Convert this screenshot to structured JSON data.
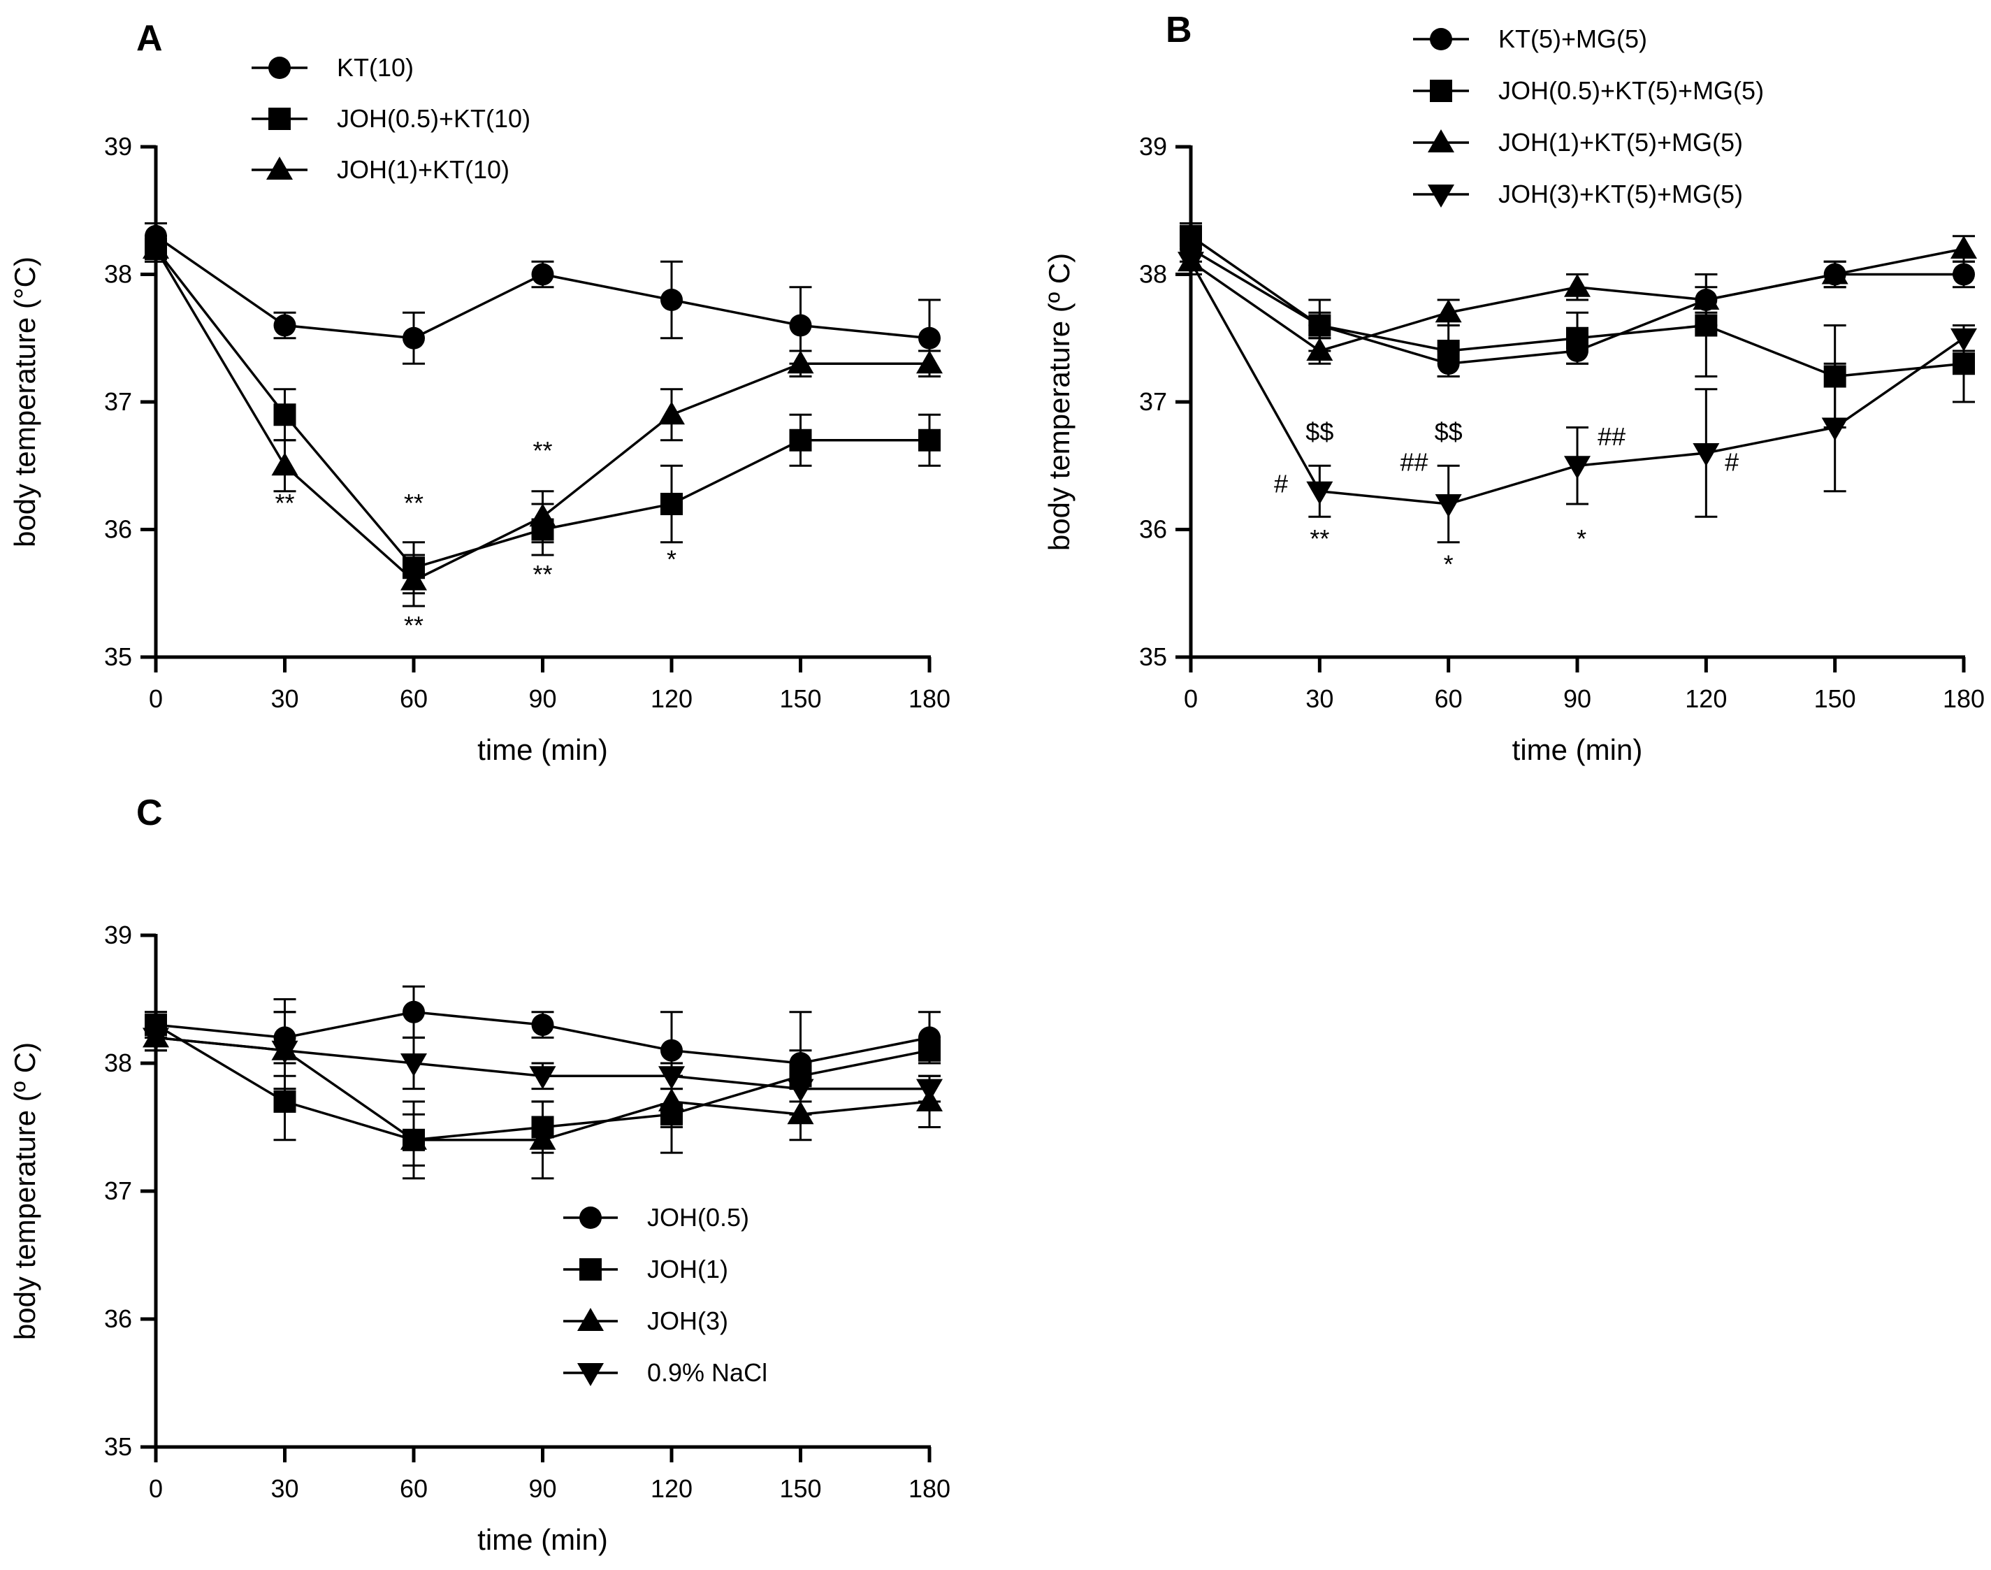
{
  "chart_data": [
    {
      "panel": "A",
      "type": "line",
      "xlabel": "time (min)",
      "ylabel": "body temperature (°C)",
      "x": [
        0,
        30,
        60,
        90,
        120,
        150,
        180
      ],
      "xticks": [
        "0",
        "30",
        "60",
        "90",
        "120",
        "150",
        "180"
      ],
      "yticks": [
        "35",
        "36",
        "37",
        "38",
        "39"
      ],
      "xlim": [
        0,
        180
      ],
      "ylim": [
        35,
        39
      ],
      "legend_position": "top",
      "series": [
        {
          "name": "KT(10)",
          "marker": "circle",
          "values": [
            38.3,
            37.6,
            37.5,
            38.0,
            37.8,
            37.6,
            37.5
          ],
          "errors": [
            0.1,
            0.1,
            0.2,
            0.1,
            0.3,
            0.3,
            0.3
          ]
        },
        {
          "name": "JOH(0.5)+KT(10)",
          "marker": "square",
          "values": [
            38.2,
            36.9,
            35.7,
            36.0,
            36.2,
            36.7,
            36.7
          ],
          "errors": [
            0.1,
            0.2,
            0.2,
            0.2,
            0.3,
            0.2,
            0.2
          ]
        },
        {
          "name": "JOH(1)+KT(10)",
          "marker": "triangle-up",
          "values": [
            38.2,
            36.5,
            35.6,
            36.1,
            36.9,
            37.3,
            37.3
          ],
          "errors": [
            0.1,
            0.2,
            0.2,
            0.2,
            0.2,
            0.1,
            0.1
          ]
        }
      ],
      "annotations": [
        {
          "x": 30,
          "y": 36.14,
          "text": "**"
        },
        {
          "x": 60,
          "y": 36.14,
          "text": "**"
        },
        {
          "x": 60,
          "y": 35.18,
          "text": "**"
        },
        {
          "x": 90,
          "y": 36.55,
          "text": "**"
        },
        {
          "x": 90,
          "y": 35.58,
          "text": "**"
        },
        {
          "x": 120,
          "y": 35.7,
          "text": "*"
        }
      ]
    },
    {
      "panel": "B",
      "type": "line",
      "xlabel": "time (min)",
      "ylabel": "body temperature (º C)",
      "x": [
        0,
        30,
        60,
        90,
        120,
        150,
        180
      ],
      "xticks": [
        "0",
        "30",
        "60",
        "90",
        "120",
        "150",
        "180"
      ],
      "yticks": [
        "35",
        "36",
        "37",
        "38",
        "39"
      ],
      "xlim": [
        0,
        180
      ],
      "ylim": [
        35,
        39
      ],
      "legend_position": "top",
      "series": [
        {
          "name": "KT(5)+MG(5)",
          "marker": "circle",
          "values": [
            38.2,
            37.6,
            37.3,
            37.4,
            37.8,
            38.0,
            38.0
          ],
          "errors": [
            0.1,
            0.1,
            0.1,
            0.1,
            0.1,
            0.1,
            0.1
          ]
        },
        {
          "name": "JOH(0.5)+KT(5)+MG(5)",
          "marker": "square",
          "values": [
            38.3,
            37.6,
            37.4,
            37.5,
            37.6,
            37.2,
            37.3
          ],
          "errors": [
            0.1,
            0.2,
            0.2,
            0.2,
            0.4,
            0.4,
            0.3
          ]
        },
        {
          "name": "JOH(1)+KT(5)+MG(5)",
          "marker": "triangle-up",
          "values": [
            38.1,
            37.4,
            37.7,
            37.9,
            37.8,
            38.0,
            38.2
          ],
          "errors": [
            0.1,
            0.1,
            0.1,
            0.1,
            0.2,
            0.1,
            0.1
          ]
        },
        {
          "name": "JOH(3)+KT(5)+MG(5)",
          "marker": "triangle-down",
          "values": [
            38.1,
            36.3,
            36.2,
            36.5,
            36.6,
            36.8,
            37.5
          ],
          "errors": [
            0.1,
            0.2,
            0.3,
            0.3,
            0.5,
            0.5,
            0.1
          ]
        }
      ],
      "annotations": [
        {
          "x": 30,
          "y": 36.7,
          "text": "$$"
        },
        {
          "x": 60,
          "y": 36.7,
          "text": "$$"
        },
        {
          "x": 21,
          "y": 36.29,
          "text": "#"
        },
        {
          "x": 52,
          "y": 36.46,
          "text": "##"
        },
        {
          "x": 98,
          "y": 36.66,
          "text": "##"
        },
        {
          "x": 126,
          "y": 36.46,
          "text": "#"
        },
        {
          "x": 30,
          "y": 35.86,
          "text": "**"
        },
        {
          "x": 60,
          "y": 35.66,
          "text": "*"
        },
        {
          "x": 91,
          "y": 35.86,
          "text": "*"
        }
      ]
    },
    {
      "panel": "C",
      "type": "line",
      "xlabel": "time (min)",
      "ylabel": "body temperature (º C)",
      "x": [
        0,
        30,
        60,
        90,
        120,
        150,
        180
      ],
      "xticks": [
        "0",
        "30",
        "60",
        "90",
        "120",
        "150",
        "180"
      ],
      "yticks": [
        "35",
        "36",
        "37",
        "38",
        "39"
      ],
      "xlim": [
        0,
        180
      ],
      "ylim": [
        35,
        39
      ],
      "legend_position": "lower-right",
      "series": [
        {
          "name": "JOH(0.5)",
          "marker": "circle",
          "values": [
            38.3,
            38.2,
            38.4,
            38.3,
            38.1,
            38.0,
            38.2
          ],
          "errors": [
            0.1,
            0.3,
            0.2,
            0.1,
            0.3,
            0.4,
            0.2
          ]
        },
        {
          "name": "JOH(1)",
          "marker": "square",
          "values": [
            38.3,
            37.7,
            37.4,
            37.5,
            37.6,
            37.9,
            38.1
          ],
          "errors": [
            0.1,
            0.3,
            0.3,
            0.2,
            0.3,
            0.2,
            0.1
          ]
        },
        {
          "name": "JOH(3)",
          "marker": "triangle-up",
          "values": [
            38.2,
            38.1,
            37.4,
            37.4,
            37.7,
            37.6,
            37.7
          ],
          "errors": [
            0.1,
            0.3,
            0.2,
            0.3,
            0.2,
            0.2,
            0.2
          ]
        },
        {
          "name": "0.9% NaCl",
          "marker": "triangle-down",
          "values": [
            38.2,
            38.1,
            38.0,
            37.9,
            37.9,
            37.8,
            37.8
          ],
          "errors": [
            0.1,
            0.3,
            0.2,
            0.1,
            0.1,
            0.2,
            0.1
          ]
        }
      ],
      "annotations": []
    }
  ]
}
